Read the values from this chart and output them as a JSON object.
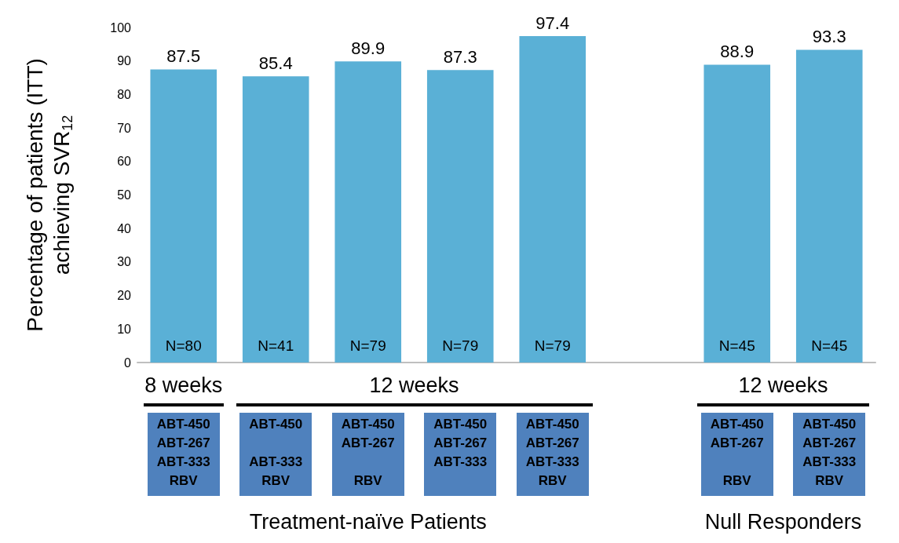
{
  "chart_data": {
    "type": "bar",
    "ylabel": "Percentage of patients (ITT)\nachieving SVR$_{12}$",
    "categories": [
      "ABT-450\nABT-267\nABT-333\nRBV",
      "ABT-450\n\nABT-333\nRBV",
      "ABT-450\nABT-267\n\nRBV",
      "ABT-450\nABT-267\nABT-333\n",
      "ABT-450\nABT-267\nABT-333\nRBV",
      null,
      "ABT-450\nABT-267\n\nRBV",
      "ABT-450\nABT-267\nABT-333\nRBV"
    ],
    "values": [
      87.5,
      85.4,
      89.9,
      87.3,
      97.4,
      null,
      88.9,
      93.3
    ],
    "color": "#5ab0d6",
    "data_labels": true,
    "ylim": [
      0,
      100
    ],
    "yticks": [
      0,
      10,
      20,
      30,
      40,
      50,
      60,
      70,
      80,
      90,
      100
    ],
    "grid": false,
    "annotations": [
      {
        "text": "N=80",
        "y": 0
      },
      {
        "text": "N=41",
        "y": 0
      },
      {
        "text": "N=79",
        "y": 0
      },
      {
        "text": "N=79",
        "y": 0
      },
      {
        "text": "N=79",
        "y": 0
      },
      {
        "text": "N=45",
        "y": 0
      },
      {
        "text": "N=45",
        "y": 0
      },
      "8 weeks",
      "12 weeks",
      "12 weeks",
      "Treatment-naïve Patients",
      "Null Responders"
    ]
  }
}
